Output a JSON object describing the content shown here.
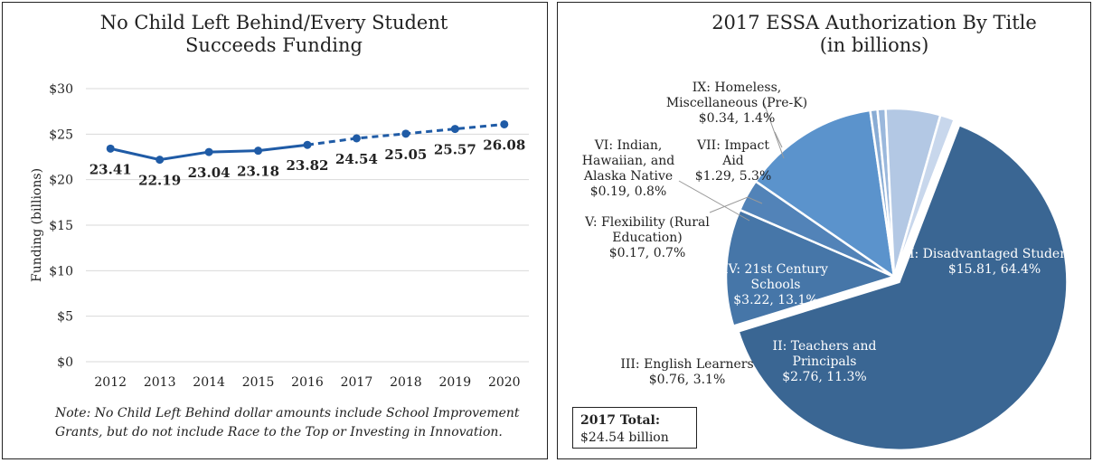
{
  "left_chart": {
    "title_line1": "No Child Left Behind/Every Student",
    "title_line2": "Succeeds Funding",
    "ylabel": "Funding (billions)",
    "note": "Note: No Child Left Behind dollar amounts include School Improvement Grants, but do not include Race to the Top or Investing in Innovation."
  },
  "right_chart": {
    "title_line1": "2017 ESSA Authorization By Title",
    "title_line2": "(in billions)",
    "total_label": "2017 Total:",
    "total_value": "$24.54 billion"
  },
  "chart_data": [
    {
      "type": "line",
      "title": "No Child Left Behind/Every Student Succeeds Funding",
      "xlabel": "",
      "ylabel": "Funding (billions)",
      "x": [
        "2012",
        "2013",
        "2014",
        "2015",
        "2016",
        "2017",
        "2018",
        "2019",
        "2020"
      ],
      "values": [
        23.41,
        22.19,
        23.04,
        23.18,
        23.82,
        24.54,
        25.05,
        25.57,
        26.08
      ],
      "data_labels": [
        "23.41",
        "22.19",
        "23.04",
        "23.18",
        "23.82",
        "24.54",
        "25.05",
        "25.57",
        "26.08"
      ],
      "solid_through_index": 4,
      "dashed_from_index": 4,
      "ylim": [
        0,
        30
      ],
      "yticks": [
        0,
        5,
        10,
        15,
        20,
        25,
        30
      ],
      "ytick_labels": [
        "$0",
        "$5",
        "$10",
        "$15",
        "$20",
        "$25",
        "$30"
      ],
      "grid": "horizontal",
      "color": "#1f5ba6"
    },
    {
      "type": "pie",
      "title": "2017 ESSA Authorization By Title (in billions)",
      "slices": [
        {
          "label_lines": [
            "I: Disadvantaged Students",
            "$15.81, 64.4%"
          ],
          "value": 15.81,
          "percent": 64.4,
          "color": "#3a6693",
          "exploded": true
        },
        {
          "label_lines": [
            "II: Teachers and",
            "Principals",
            "$2.76, 11.3%"
          ],
          "value": 2.76,
          "percent": 11.3,
          "color": "#4676a8"
        },
        {
          "label_lines": [
            "III: English Learners",
            "$0.76, 3.1%"
          ],
          "value": 0.76,
          "percent": 3.1,
          "color": "#5283b8"
        },
        {
          "label_lines": [
            "IV: 21st Century",
            "Schools",
            "$3.22, 13.1%"
          ],
          "value": 3.22,
          "percent": 13.1,
          "color": "#5b93cc"
        },
        {
          "label_lines": [
            "V: Flexibility (Rural",
            "Education)",
            "$0.17, 0.7%"
          ],
          "value": 0.17,
          "percent": 0.7,
          "color": "#89acd4"
        },
        {
          "label_lines": [
            "VI: Indian,",
            "Hawaiian, and",
            "Alaska Native",
            "$0.19, 0.8%"
          ],
          "value": 0.19,
          "percent": 0.8,
          "color": "#9bb8dc"
        },
        {
          "label_lines": [
            "VII: Impact",
            "Aid",
            "$1.29, 5.3%"
          ],
          "value": 1.29,
          "percent": 5.3,
          "color": "#b3c8e4"
        },
        {
          "label_lines": [
            "IX: Homeless,",
            "Miscellaneous (Pre-K)",
            "$0.34, 1.4%"
          ],
          "value": 0.34,
          "percent": 1.4,
          "color": "#c8d7ec"
        }
      ]
    }
  ]
}
